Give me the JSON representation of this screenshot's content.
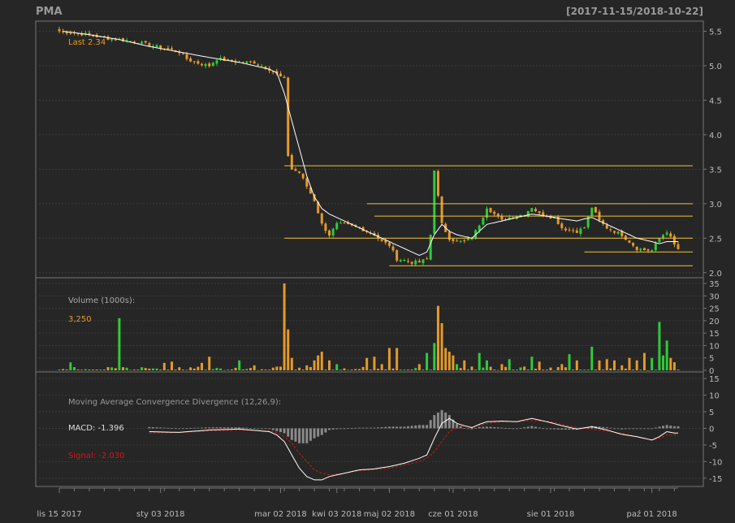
{
  "header": {
    "symbol": "PMA",
    "range": "[2017-11-15/2018-10-22]"
  },
  "colors": {
    "bg": "#262626",
    "frame": "#777777",
    "grid": "#3a3a3a",
    "up": "#2ecc3a",
    "down": "#e59a2a",
    "sma": "#ffffff",
    "hline": "#f2c230",
    "signal": "#d01818",
    "macd": "#ffffff",
    "hist": "#8a8a8a",
    "text": "#bbbbbb",
    "muted": "#999999"
  },
  "chart_data": [
    {
      "type": "candlestick",
      "panel": "price",
      "last_label": "Last 2.34",
      "ylim": [
        1.95,
        5.6
      ],
      "yticks": [
        "5.5",
        "5.0",
        "4.5",
        "4.0",
        "3.5",
        "3.0",
        "2.5",
        "2.0"
      ],
      "ytick_values": [
        5.5,
        5.0,
        4.5,
        4.0,
        3.5,
        3.0,
        2.5,
        2.0
      ],
      "anchors": [
        [
          0,
          5.5
        ],
        [
          8,
          5.45
        ],
        [
          12,
          5.4
        ],
        [
          16,
          5.38
        ],
        [
          20,
          5.35
        ],
        [
          24,
          5.3
        ],
        [
          28,
          5.25
        ],
        [
          32,
          5.2
        ],
        [
          34,
          5.1
        ],
        [
          36,
          5.05
        ],
        [
          40,
          5.0
        ],
        [
          42,
          5.1
        ],
        [
          48,
          5.05
        ],
        [
          52,
          5.05
        ],
        [
          56,
          4.95
        ],
        [
          60,
          4.8
        ],
        [
          61,
          3.7
        ],
        [
          62,
          3.5
        ],
        [
          64,
          3.45
        ],
        [
          66,
          3.25
        ],
        [
          68,
          3.05
        ],
        [
          70,
          2.7
        ],
        [
          72,
          2.55
        ],
        [
          74,
          2.7
        ],
        [
          76,
          2.7
        ],
        [
          80,
          2.65
        ],
        [
          84,
          2.55
        ],
        [
          86,
          2.45
        ],
        [
          88,
          2.4
        ],
        [
          90,
          2.2
        ],
        [
          92,
          2.18
        ],
        [
          94,
          2.15
        ],
        [
          96,
          2.15
        ],
        [
          98,
          2.2
        ],
        [
          99,
          2.55
        ],
        [
          100,
          3.5
        ],
        [
          101,
          3.1
        ],
        [
          102,
          2.7
        ],
        [
          104,
          2.5
        ],
        [
          106,
          2.45
        ],
        [
          108,
          2.45
        ],
        [
          110,
          2.5
        ],
        [
          112,
          2.7
        ],
        [
          114,
          2.95
        ],
        [
          116,
          2.85
        ],
        [
          118,
          2.75
        ],
        [
          120,
          2.8
        ],
        [
          124,
          2.85
        ],
        [
          126,
          2.95
        ],
        [
          128,
          2.85
        ],
        [
          132,
          2.8
        ],
        [
          134,
          2.65
        ],
        [
          136,
          2.62
        ],
        [
          138,
          2.6
        ],
        [
          140,
          2.65
        ],
        [
          142,
          2.95
        ],
        [
          144,
          2.75
        ],
        [
          146,
          2.65
        ],
        [
          148,
          2.6
        ],
        [
          150,
          2.55
        ],
        [
          152,
          2.45
        ],
        [
          154,
          2.35
        ],
        [
          156,
          2.33
        ],
        [
          158,
          2.32
        ],
        [
          160,
          2.5
        ],
        [
          162,
          2.6
        ],
        [
          164,
          2.4
        ],
        [
          165,
          2.34
        ]
      ],
      "sma": [
        [
          1,
          5.5
        ],
        [
          8,
          5.45
        ],
        [
          16,
          5.38
        ],
        [
          24,
          5.28
        ],
        [
          32,
          5.2
        ],
        [
          40,
          5.12
        ],
        [
          48,
          5.05
        ],
        [
          56,
          4.95
        ],
        [
          58,
          4.9
        ],
        [
          60,
          4.6
        ],
        [
          62,
          4.2
        ],
        [
          64,
          3.8
        ],
        [
          66,
          3.4
        ],
        [
          68,
          3.1
        ],
        [
          70,
          2.93
        ],
        [
          72,
          2.85
        ],
        [
          76,
          2.75
        ],
        [
          80,
          2.65
        ],
        [
          84,
          2.55
        ],
        [
          88,
          2.45
        ],
        [
          92,
          2.35
        ],
        [
          96,
          2.25
        ],
        [
          98,
          2.3
        ],
        [
          100,
          2.55
        ],
        [
          102,
          2.7
        ],
        [
          104,
          2.6
        ],
        [
          106,
          2.55
        ],
        [
          110,
          2.5
        ],
        [
          112,
          2.6
        ],
        [
          114,
          2.7
        ],
        [
          118,
          2.75
        ],
        [
          122,
          2.8
        ],
        [
          126,
          2.85
        ],
        [
          130,
          2.82
        ],
        [
          134,
          2.78
        ],
        [
          138,
          2.75
        ],
        [
          140,
          2.78
        ],
        [
          142,
          2.8
        ],
        [
          146,
          2.7
        ],
        [
          150,
          2.6
        ],
        [
          154,
          2.5
        ],
        [
          158,
          2.45
        ],
        [
          160,
          2.42
        ],
        [
          162,
          2.45
        ],
        [
          165,
          2.45
        ]
      ],
      "hlines": [
        [
          60,
          3.55
        ],
        [
          122,
          3.55
        ],
        [
          82,
          3.0
        ],
        [
          122,
          3.0
        ],
        [
          84,
          2.82
        ],
        [
          122,
          2.82
        ],
        [
          60,
          2.5
        ],
        [
          122,
          2.5
        ],
        [
          140,
          2.3
        ],
        [
          122,
          2.3
        ],
        [
          88,
          2.1
        ],
        [
          122,
          2.1
        ]
      ]
    },
    {
      "type": "bar",
      "panel": "volume",
      "title": "Volume (1000s):",
      "last_value": "3,250",
      "ylim": [
        0,
        36
      ],
      "yticks": [
        "35",
        "30",
        "25",
        "20",
        "15",
        "10",
        "5",
        "0"
      ],
      "ytick_values": [
        35,
        30,
        25,
        20,
        15,
        10,
        5,
        0
      ],
      "spikes": [
        [
          3,
          3.2
        ],
        [
          16,
          21
        ],
        [
          28,
          3
        ],
        [
          30,
          3.5
        ],
        [
          38,
          3
        ],
        [
          40,
          5.5
        ],
        [
          48,
          4
        ],
        [
          52,
          2
        ],
        [
          60,
          35
        ],
        [
          61,
          16.5
        ],
        [
          62,
          5
        ],
        [
          66,
          2
        ],
        [
          68,
          4
        ],
        [
          69,
          6
        ],
        [
          70,
          7.5
        ],
        [
          72,
          4
        ],
        [
          74,
          2.5
        ],
        [
          82,
          5
        ],
        [
          84,
          5.5
        ],
        [
          86,
          2.5
        ],
        [
          88,
          9
        ],
        [
          90,
          9
        ],
        [
          96,
          2.5
        ],
        [
          98,
          7
        ],
        [
          100,
          11
        ],
        [
          101,
          26
        ],
        [
          102,
          19
        ],
        [
          103,
          9
        ],
        [
          104,
          7.5
        ],
        [
          105,
          6
        ],
        [
          106,
          2.5
        ],
        [
          108,
          4
        ],
        [
          110,
          1.5
        ],
        [
          112,
          7
        ],
        [
          114,
          4
        ],
        [
          118,
          2.5
        ],
        [
          120,
          4.5
        ],
        [
          124,
          1.5
        ],
        [
          126,
          5.5
        ],
        [
          128,
          3.5
        ],
        [
          134,
          2.5
        ],
        [
          136,
          6.5
        ],
        [
          138,
          4
        ],
        [
          142,
          9.5
        ],
        [
          144,
          4
        ],
        [
          146,
          4.5
        ],
        [
          148,
          4
        ],
        [
          150,
          2
        ],
        [
          152,
          5
        ],
        [
          154,
          4
        ],
        [
          156,
          7
        ],
        [
          158,
          5
        ],
        [
          160,
          19.5
        ],
        [
          161,
          6
        ],
        [
          162,
          12
        ],
        [
          163,
          5
        ],
        [
          164,
          3.25
        ]
      ]
    },
    {
      "type": "line",
      "panel": "macd",
      "title": "Moving Average Convergence Divergence (12,26,9):",
      "macd_label": "MACD: -1.396",
      "signal_label": "Signal: -2.030",
      "ylim": [
        -17,
        16
      ],
      "yticks": [
        "15",
        "10",
        "5",
        "0",
        "-5",
        "-10",
        "-15"
      ],
      "ytick_values": [
        15,
        10,
        5,
        0,
        -5,
        -10,
        -15
      ],
      "macd": [
        [
          24,
          -1
        ],
        [
          32,
          -1.2
        ],
        [
          40,
          -0.5
        ],
        [
          48,
          -0.2
        ],
        [
          56,
          -1
        ],
        [
          58,
          -2
        ],
        [
          60,
          -4
        ],
        [
          62,
          -8
        ],
        [
          64,
          -12
        ],
        [
          66,
          -14.5
        ],
        [
          68,
          -15.5
        ],
        [
          70,
          -15.5
        ],
        [
          72,
          -14.5
        ],
        [
          76,
          -13.5
        ],
        [
          80,
          -12.5
        ],
        [
          84,
          -12.2
        ],
        [
          88,
          -11.5
        ],
        [
          92,
          -10.5
        ],
        [
          96,
          -9
        ],
        [
          98,
          -8
        ],
        [
          100,
          -3
        ],
        [
          102,
          1.5
        ],
        [
          104,
          3
        ],
        [
          106,
          1.5
        ],
        [
          108,
          0.8
        ],
        [
          110,
          0.2
        ],
        [
          112,
          1.2
        ],
        [
          114,
          2
        ],
        [
          118,
          2.2
        ],
        [
          122,
          2
        ],
        [
          126,
          3
        ],
        [
          130,
          2
        ],
        [
          134,
          0.8
        ],
        [
          138,
          -0.2
        ],
        [
          142,
          0.5
        ],
        [
          146,
          -0.5
        ],
        [
          150,
          -1.8
        ],
        [
          154,
          -2.5
        ],
        [
          158,
          -3.5
        ],
        [
          160,
          -2.5
        ],
        [
          162,
          -1
        ],
        [
          164,
          -1.4
        ]
      ],
      "signal": [
        [
          24,
          -1.4
        ],
        [
          32,
          -1.2
        ],
        [
          40,
          -0.8
        ],
        [
          48,
          -0.5
        ],
        [
          56,
          -0.8
        ],
        [
          58,
          -1.2
        ],
        [
          60,
          -2.5
        ],
        [
          62,
          -4.5
        ],
        [
          64,
          -7.5
        ],
        [
          66,
          -10
        ],
        [
          68,
          -12.5
        ],
        [
          70,
          -13.5
        ],
        [
          72,
          -14
        ],
        [
          76,
          -13.5
        ],
        [
          80,
          -12.7
        ],
        [
          84,
          -12.4
        ],
        [
          88,
          -12
        ],
        [
          92,
          -11
        ],
        [
          96,
          -10
        ],
        [
          98,
          -9
        ],
        [
          100,
          -7
        ],
        [
          102,
          -4
        ],
        [
          104,
          -1
        ],
        [
          106,
          0.2
        ],
        [
          108,
          0.7
        ],
        [
          110,
          0.5
        ],
        [
          112,
          0.8
        ],
        [
          114,
          1.5
        ],
        [
          118,
          2
        ],
        [
          122,
          2.1
        ],
        [
          126,
          2.3
        ],
        [
          130,
          2.2
        ],
        [
          134,
          1.2
        ],
        [
          138,
          0.2
        ],
        [
          142,
          -0.2
        ],
        [
          146,
          -0.8
        ],
        [
          150,
          -1.5
        ],
        [
          154,
          -2.5
        ],
        [
          158,
          -3.5
        ],
        [
          160,
          -3
        ],
        [
          162,
          -2
        ],
        [
          164,
          -2.03
        ]
      ]
    }
  ],
  "x_axis": {
    "labels": [
      "lis 15 2017",
      "sty 03 2018",
      "mar 02 2018",
      "kwi 03 2018",
      "maj 02 2018",
      "cze 01 2018",
      "sie 01 2018",
      "paź 01 2018"
    ],
    "positions": [
      0,
      27,
      59,
      74,
      88,
      105,
      131,
      158
    ]
  }
}
